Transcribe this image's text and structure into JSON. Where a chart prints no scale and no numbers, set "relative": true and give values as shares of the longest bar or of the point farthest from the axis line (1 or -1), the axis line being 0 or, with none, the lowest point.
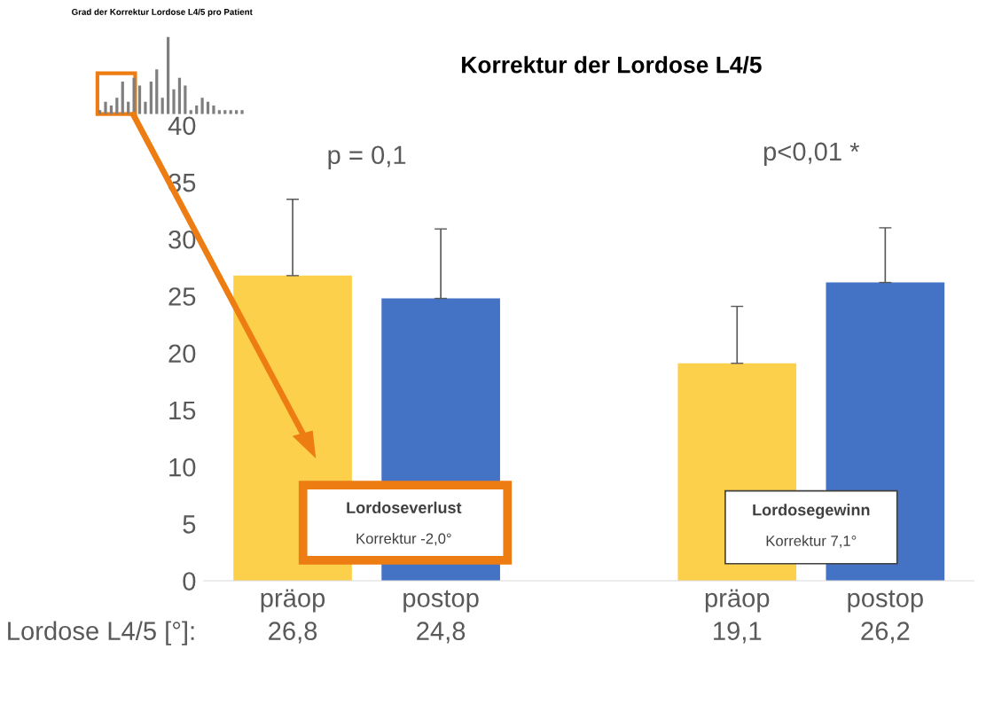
{
  "chart_data": [
    {
      "type": "bar",
      "title": "Korrektur der Lordose L4/5",
      "categories": [
        "präop",
        "postop",
        null,
        "präop",
        "postop"
      ],
      "values": [
        26.8,
        24.8,
        null,
        19.1,
        26.2
      ],
      "colors": [
        "#fcd04b",
        "#4472c4",
        null,
        "#fcd04b",
        "#4472c4"
      ],
      "errors": [
        [
          26.8,
          33.5
        ],
        [
          24.8,
          30.9
        ],
        null,
        [
          19.1,
          24.1
        ],
        [
          26.2,
          31.0
        ]
      ],
      "value_labels": [
        "26,8",
        "24,8",
        null,
        "19,1",
        "26,2"
      ],
      "ylim": [
        0,
        40
      ],
      "yticks": [
        0,
        5,
        10,
        15,
        20,
        25,
        30,
        35,
        40
      ],
      "grid": false,
      "legend": false,
      "annotations": [
        "p = 0,1",
        "p<0,01 *",
        "Lordoseverlust",
        "Korrektur -2,0°",
        "Lordosegewinn",
        "Korrektur 7,1°",
        "Lordose L4/5 [°]:"
      ]
    },
    {
      "type": "bar",
      "title": "Grad der Korrektur Lordose L4/5 pro Patient",
      "relative": true,
      "categories": [
        null,
        null,
        null,
        null,
        null,
        null,
        null,
        null,
        null,
        null,
        null,
        null,
        null,
        null,
        null,
        null,
        null,
        null,
        null,
        null,
        null,
        null,
        null,
        null,
        null,
        null
      ],
      "values": [
        0.05,
        0.16,
        0.11,
        0.21,
        0.42,
        0.16,
        0.47,
        0.37,
        0.16,
        0.42,
        0.58,
        0.21,
        1,
        0.32,
        0.47,
        0.37,
        0.05,
        0.11,
        0.21,
        0.16,
        0.11,
        0.05,
        0.05,
        0.05,
        0.05,
        0.05
      ],
      "color": "#7f7f7f"
    }
  ]
}
